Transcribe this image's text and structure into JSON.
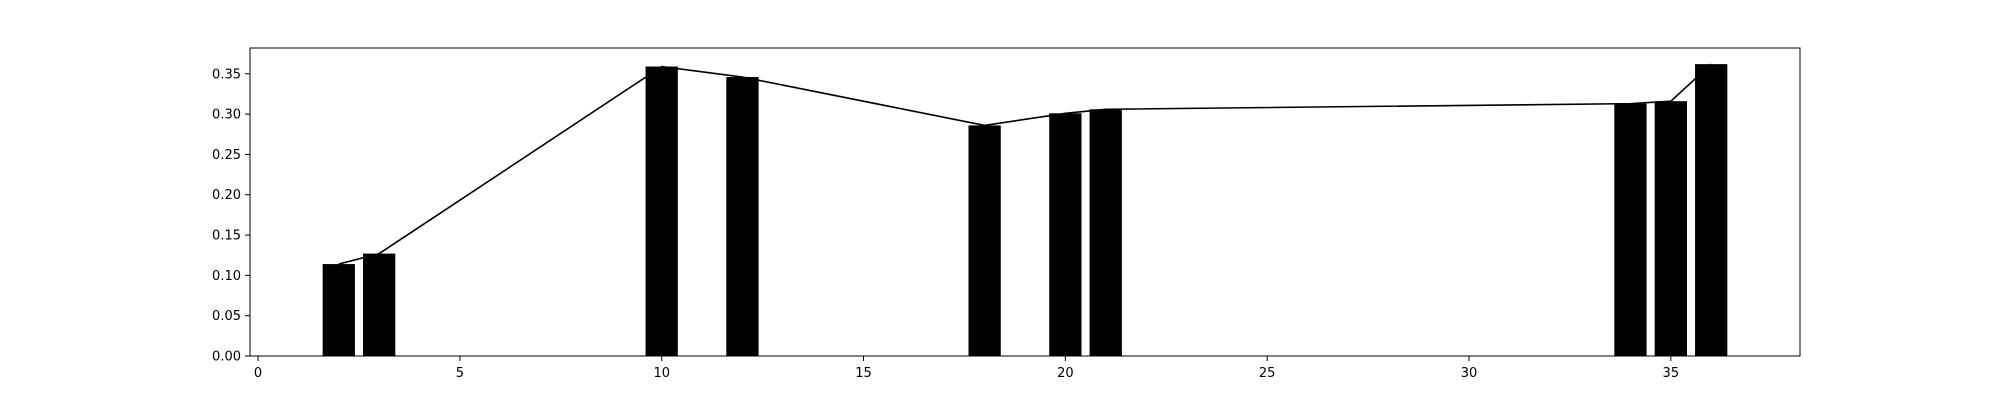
{
  "chart_data": {
    "type": "bar",
    "title": "",
    "xlabel": "",
    "ylabel": "",
    "xlim": [
      -0.2,
      38.2
    ],
    "ylim": [
      0,
      0.382
    ],
    "grid": false,
    "legend": "none",
    "bar_width": 0.8,
    "bar_color": "#000000",
    "line_color": "#000000",
    "x": [
      2,
      3,
      10,
      12,
      18,
      20,
      21,
      34,
      35,
      36
    ],
    "values": [
      0.114,
      0.127,
      0.359,
      0.346,
      0.286,
      0.301,
      0.306,
      0.313,
      0.316,
      0.362
    ],
    "xticks": [
      0,
      5,
      10,
      15,
      20,
      25,
      30,
      35
    ],
    "yticks": [
      0.0,
      0.05,
      0.1,
      0.15,
      0.2,
      0.25,
      0.3,
      0.35
    ],
    "xtick_labels": [
      "0",
      "5",
      "10",
      "15",
      "20",
      "25",
      "30",
      "35"
    ],
    "ytick_labels": [
      "0.00",
      "0.05",
      "0.10",
      "0.15",
      "0.20",
      "0.25",
      "0.30",
      "0.35"
    ]
  }
}
